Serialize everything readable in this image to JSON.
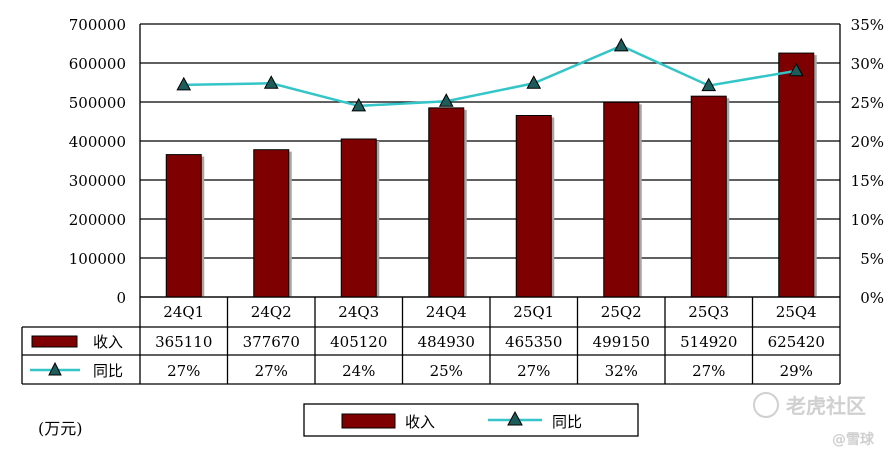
{
  "chart_data": {
    "type": "bar",
    "categories": [
      "24Q1",
      "24Q2",
      "24Q3",
      "24Q4",
      "25Q1",
      "25Q2",
      "25Q3",
      "25Q4"
    ],
    "series": [
      {
        "name": "收入",
        "type": "bar",
        "values": [
          365110,
          377670,
          405120,
          484930,
          465350,
          499150,
          514920,
          625420
        ],
        "labels": [
          "365110",
          "377670",
          "405120",
          "484930",
          "465350",
          "499150",
          "514920",
          "625420"
        ],
        "color": "#7f0000"
      },
      {
        "name": "同比",
        "type": "line",
        "values": [
          0.272,
          0.274,
          0.245,
          0.251,
          0.274,
          0.322,
          0.271,
          0.29
        ],
        "labels": [
          "27%",
          "27%",
          "24%",
          "25%",
          "27%",
          "32%",
          "27%",
          "29%"
        ],
        "color": "#33c5c8"
      }
    ],
    "y_left": {
      "ylim": [
        0,
        700000
      ],
      "ticks": [
        "700000",
        "600000",
        "500000",
        "400000",
        "300000",
        "200000",
        "100000",
        "0"
      ]
    },
    "y_right": {
      "ylim": [
        0,
        0.35
      ],
      "ticks": [
        "35%",
        "30%",
        "25%",
        "20%",
        "15%",
        "10%",
        "5%",
        "0%"
      ]
    },
    "unit_label": "(万元)",
    "grid": true,
    "legend": {
      "position": "bottom",
      "items": [
        "收入",
        "同比"
      ]
    },
    "watermarks": [
      "老虎社区",
      "@雪球"
    ]
  }
}
